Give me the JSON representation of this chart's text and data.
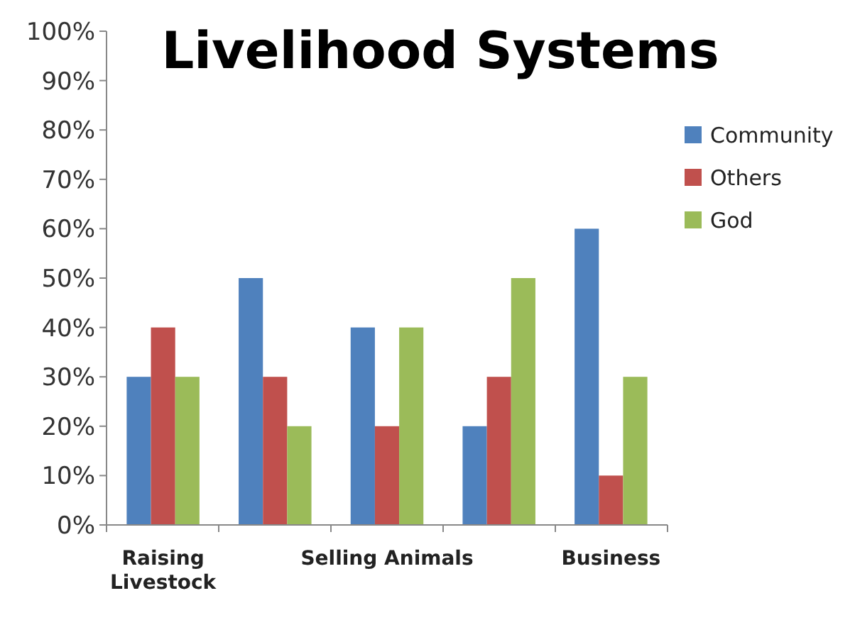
{
  "chart_data": {
    "type": "bar",
    "title": "Livelihood Systems",
    "categories": [
      "Raising Livestock",
      null,
      "Selling Animals",
      null,
      "Business"
    ],
    "series": [
      {
        "name": "Community",
        "color": "#4f81bd",
        "values": [
          30,
          50,
          40,
          20,
          60
        ]
      },
      {
        "name": "Others",
        "color": "#c0504d",
        "values": [
          40,
          30,
          20,
          30,
          10
        ]
      },
      {
        "name": "God",
        "color": "#9bbb59",
        "values": [
          30,
          20,
          40,
          50,
          30
        ]
      }
    ],
    "ylim": [
      0,
      100
    ],
    "yticks": [
      {
        "value": 0,
        "label": "0%"
      },
      {
        "value": 10,
        "label": "10%"
      },
      {
        "value": 20,
        "label": "20%"
      },
      {
        "value": 30,
        "label": "30%"
      },
      {
        "value": 40,
        "label": "40%"
      },
      {
        "value": 50,
        "label": "50%"
      },
      {
        "value": 60,
        "label": "60%"
      },
      {
        "value": 70,
        "label": "70%"
      },
      {
        "value": 80,
        "label": "80%"
      },
      {
        "value": 90,
        "label": "90%"
      },
      {
        "value": 100,
        "label": "100%"
      }
    ],
    "grid": false,
    "legend": "right"
  }
}
